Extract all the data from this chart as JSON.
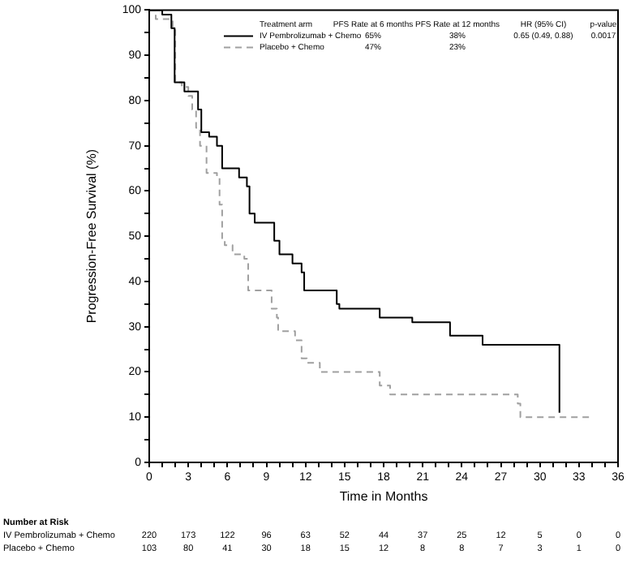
{
  "chart_data": {
    "type": "step",
    "xlabel": "Time in Months",
    "ylabel": "Progression-Free Survival (%)",
    "xlim": [
      0,
      36
    ],
    "ylim": [
      0,
      100
    ],
    "xticks": [
      0,
      {
        "value": 1,
        "label": null
      },
      {
        "value": 2,
        "label": null
      },
      3,
      {
        "value": 4,
        "label": null
      },
      {
        "value": 5,
        "label": null
      },
      6,
      {
        "value": 7,
        "label": null
      },
      {
        "value": 8,
        "label": null
      },
      9,
      {
        "value": 10,
        "label": null
      },
      {
        "value": 11,
        "label": null
      },
      12,
      {
        "value": 13,
        "label": null
      },
      {
        "value": 14,
        "label": null
      },
      15,
      {
        "value": 16,
        "label": null
      },
      {
        "value": 17,
        "label": null
      },
      18,
      {
        "value": 19,
        "label": null
      },
      {
        "value": 20,
        "label": null
      },
      21,
      {
        "value": 22,
        "label": null
      },
      {
        "value": 23,
        "label": null
      },
      24,
      {
        "value": 25,
        "label": null
      },
      {
        "value": 26,
        "label": null
      },
      27,
      {
        "value": 28,
        "label": null
      },
      {
        "value": 29,
        "label": null
      },
      30,
      {
        "value": 31,
        "label": null
      },
      {
        "value": 32,
        "label": null
      },
      33,
      {
        "value": 34,
        "label": null
      },
      {
        "value": 35,
        "label": null
      },
      36
    ],
    "yticks": [
      0,
      {
        "value": 5,
        "label": null
      },
      10,
      {
        "value": 15,
        "label": null
      },
      20,
      {
        "value": 25,
        "label": null
      },
      30,
      {
        "value": 35,
        "label": null
      },
      40,
      {
        "value": 45,
        "label": null
      },
      50,
      {
        "value": 55,
        "label": null
      },
      60,
      {
        "value": 65,
        "label": null
      },
      70,
      {
        "value": 75,
        "label": null
      },
      80,
      {
        "value": 85,
        "label": null
      },
      90,
      {
        "value": 95,
        "label": null
      },
      100
    ],
    "grid": false,
    "legend": "top",
    "series": [
      {
        "name": "IV Pembrolizumab + Chemo",
        "color": "#000000",
        "line_style": "solid",
        "x": [
          0,
          1.0,
          1.7,
          1.95,
          2.7,
          3.75,
          4.0,
          4.6,
          5.2,
          5.6,
          6.9,
          7.5,
          7.7,
          8.1,
          9.6,
          10.0,
          11.0,
          11.7,
          11.9,
          14.4,
          14.6,
          17.7,
          20.2,
          23.1,
          25.6,
          31.5
        ],
        "values": [
          100,
          99,
          96,
          84,
          82,
          78,
          73,
          72,
          70,
          65,
          63,
          61,
          55,
          53,
          49,
          46,
          44,
          42,
          38,
          35,
          34,
          32,
          31,
          28,
          26,
          11
        ]
      },
      {
        "name": "Placebo + Chemo",
        "color": "#a0a0a0",
        "line_style": "dashed",
        "x": [
          0,
          0.5,
          1.8,
          2.0,
          2.5,
          3.0,
          3.3,
          3.6,
          3.9,
          4.4,
          5.2,
          5.4,
          5.6,
          5.8,
          6.4,
          7.3,
          7.6,
          9.4,
          9.8,
          9.9,
          11.2,
          11.7,
          12.1,
          13.1,
          17.7,
          18.5,
          28.3,
          28.5,
          33.9
        ],
        "values": [
          100,
          98,
          96,
          84,
          83,
          81,
          78,
          74,
          70,
          64,
          63,
          57,
          49,
          48,
          46,
          45,
          38,
          34,
          32,
          29,
          27,
          23,
          22,
          20,
          17,
          15,
          13,
          10,
          10
        ]
      }
    ],
    "annotations": [
      "Treatment arm",
      "PFS Rate at 6 months",
      "PFS Rate at 12 months",
      "HR (95% CI)",
      "p-value",
      "65%",
      "38%",
      "0.65 (0.49, 0.88)",
      "0.0017",
      "47%",
      "23%",
      "Number at Risk",
      "220",
      "173",
      "122",
      "96",
      "63",
      "52",
      "44",
      "37",
      "25",
      "12",
      "5",
      "0",
      "0",
      "103",
      "80",
      "41",
      "30",
      "18",
      "15",
      "12",
      "8",
      "8",
      "7",
      "3",
      "1",
      "0"
    ]
  }
}
